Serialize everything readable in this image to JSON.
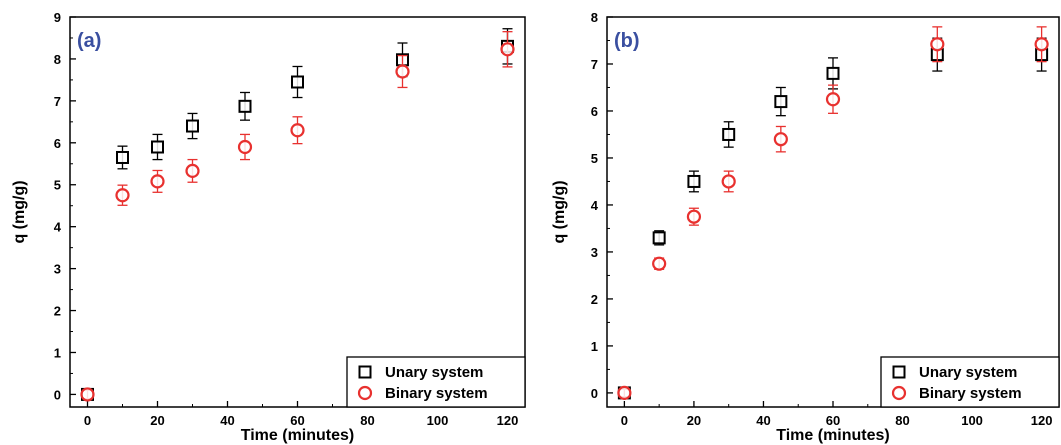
{
  "colors": {
    "series_a": "#000000",
    "series_b": "#e8312f",
    "panel_label": "#3a4fa0"
  },
  "chart_data": [
    {
      "type": "scatter",
      "panel_label": "(a)",
      "xlabel": "Time (minutes)",
      "ylabel": "q (mg/g)",
      "xlim": [
        -5,
        125
      ],
      "ylim": [
        -0.3,
        9
      ],
      "xticks": [
        0,
        20,
        40,
        60,
        80,
        100,
        120
      ],
      "yticks": [
        0,
        1,
        2,
        3,
        4,
        5,
        6,
        7,
        8,
        9
      ],
      "legend_position": "bottom-right",
      "grid": false,
      "series": [
        {
          "name": "Unary system",
          "marker": "square",
          "color": "#000000",
          "x": [
            0,
            10,
            20,
            30,
            45,
            60,
            90,
            120
          ],
          "y": [
            0.0,
            5.65,
            5.9,
            6.4,
            6.87,
            7.45,
            7.98,
            8.3
          ],
          "err": [
            0.1,
            0.27,
            0.3,
            0.3,
            0.33,
            0.37,
            0.4,
            0.42
          ]
        },
        {
          "name": "Binary system",
          "marker": "circle",
          "color": "#e8312f",
          "x": [
            0,
            10,
            20,
            30,
            45,
            60,
            90,
            120
          ],
          "y": [
            0.0,
            4.75,
            5.08,
            5.33,
            5.9,
            6.3,
            7.7,
            8.23
          ],
          "err": [
            0.1,
            0.24,
            0.26,
            0.27,
            0.3,
            0.32,
            0.38,
            0.42
          ]
        }
      ]
    },
    {
      "type": "scatter",
      "panel_label": "(b)",
      "xlabel": "Time (minutes)",
      "ylabel": "q (mg/g)",
      "xlim": [
        -5,
        125
      ],
      "ylim": [
        -0.3,
        8
      ],
      "xticks": [
        0,
        20,
        40,
        60,
        80,
        100,
        120
      ],
      "yticks": [
        0,
        1,
        2,
        3,
        4,
        5,
        6,
        7,
        8
      ],
      "legend_position": "bottom-right",
      "grid": false,
      "series": [
        {
          "name": "Unary system",
          "marker": "square",
          "color": "#000000",
          "x": [
            0,
            10,
            20,
            30,
            45,
            60,
            90,
            120
          ],
          "y": [
            0.0,
            3.3,
            4.5,
            5.5,
            6.2,
            6.8,
            7.2,
            7.2
          ],
          "err": [
            0.08,
            0.15,
            0.22,
            0.27,
            0.3,
            0.33,
            0.35,
            0.35
          ]
        },
        {
          "name": "Binary system",
          "marker": "circle",
          "color": "#e8312f",
          "x": [
            0,
            10,
            20,
            30,
            45,
            60,
            90,
            120
          ],
          "y": [
            0.0,
            2.75,
            3.75,
            4.5,
            5.4,
            6.25,
            7.42,
            7.42
          ],
          "err": [
            0.08,
            0.12,
            0.18,
            0.22,
            0.27,
            0.3,
            0.37,
            0.37
          ]
        }
      ]
    }
  ]
}
